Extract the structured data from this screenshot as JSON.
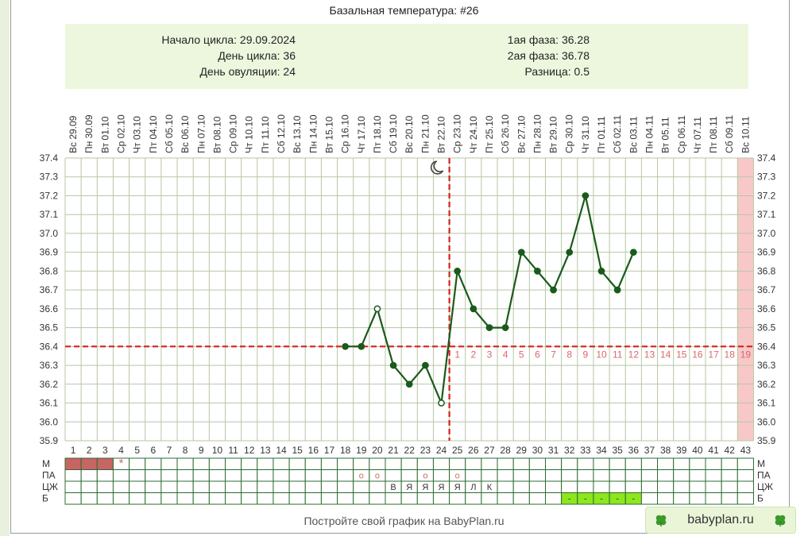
{
  "title": "Базальная температура: #26",
  "summary": {
    "cycle_start": "Начало цикла: 29.09.2024",
    "cycle_day": "День цикла: 36",
    "ovulation_day": "День овуляции: 24",
    "phase1": "1ая фаза: 36.28",
    "phase2": "2ая фаза: 36.78",
    "difference": "Разница: 0.5"
  },
  "footer_text": "Постройте свой график на BabyPlan.ru",
  "brand": "babyplan.ru",
  "colors": {
    "line": "#1a5a1a",
    "coverline": "#d62020",
    "grid": "#b6c7a6",
    "menses": "#c86464",
    "predicted": "#f8c8c8",
    "b_cell": "#8ee61e",
    "info_bg": "#edf7de",
    "accent_text": "#d66a6a"
  },
  "chart_data": {
    "type": "line",
    "title": "Базальная температура: #26",
    "x_days": [
      1,
      2,
      3,
      4,
      5,
      6,
      7,
      8,
      9,
      10,
      11,
      12,
      13,
      14,
      15,
      16,
      17,
      18,
      19,
      20,
      21,
      22,
      23,
      24,
      25,
      26,
      27,
      28,
      29,
      30,
      31,
      32,
      33,
      34,
      35,
      36,
      37,
      38,
      39,
      40,
      41,
      42,
      43
    ],
    "dates": [
      "Вс 29.09",
      "Пн 30.09",
      "Вт 01.10",
      "Ср 02.10",
      "Чт 03.10",
      "Пт 04.10",
      "Сб 05.10",
      "Вс 06.10",
      "Пн 07.10",
      "Вт 08.10",
      "Ср 09.10",
      "Чт 10.10",
      "Пт 11.10",
      "Сб 12.10",
      "Вс 13.10",
      "Пн 14.10",
      "Вт 15.10",
      "Ср 16.10",
      "Чт 17.10",
      "Пт 18.10",
      "Сб 19.10",
      "Вс 20.10",
      "Пн 21.10",
      "Вт 22.10",
      "Ср 23.10",
      "Чт 24.10",
      "Пт 25.10",
      "Сб 26.10",
      "Вс 27.10",
      "Пн 28.10",
      "Вт 29.10",
      "Ср 30.10",
      "Чт 31.10",
      "Пт 01.11",
      "Сб 02.11",
      "Вс 03.11",
      "Пн 04.11",
      "Вт 05.11",
      "Ср 06.11",
      "Чт 07.11",
      "Пт 08.11",
      "Сб 09.11",
      "Вс 10.11"
    ],
    "ylim": [
      35.9,
      37.4
    ],
    "yticks": [
      "37.4",
      "37.3",
      "37.2",
      "37.1",
      "37.0",
      "36.9",
      "36.8",
      "36.7",
      "36.6",
      "36.5",
      "36.4",
      "36.3",
      "36.2",
      "36.1",
      "36.0",
      "35.9"
    ],
    "points": [
      {
        "day": 18,
        "temp": 36.4,
        "style": "filled"
      },
      {
        "day": 19,
        "temp": 36.4,
        "style": "filled"
      },
      {
        "day": 20,
        "temp": 36.6,
        "style": "open"
      },
      {
        "day": 21,
        "temp": 36.3,
        "style": "filled"
      },
      {
        "day": 22,
        "temp": 36.2,
        "style": "filled"
      },
      {
        "day": 23,
        "temp": 36.3,
        "style": "filled"
      },
      {
        "day": 24,
        "temp": 36.1,
        "style": "open"
      },
      {
        "day": 25,
        "temp": 36.8,
        "style": "filled"
      },
      {
        "day": 26,
        "temp": 36.6,
        "style": "filled"
      },
      {
        "day": 27,
        "temp": 36.5,
        "style": "filled"
      },
      {
        "day": 28,
        "temp": 36.5,
        "style": "filled"
      },
      {
        "day": 29,
        "temp": 36.9,
        "style": "filled"
      },
      {
        "day": 30,
        "temp": 36.8,
        "style": "filled"
      },
      {
        "day": 31,
        "temp": 36.7,
        "style": "filled"
      },
      {
        "day": 32,
        "temp": 36.9,
        "style": "filled"
      },
      {
        "day": 33,
        "temp": 37.2,
        "style": "filled"
      },
      {
        "day": 34,
        "temp": 36.8,
        "style": "filled"
      },
      {
        "day": 35,
        "temp": 36.7,
        "style": "filled"
      },
      {
        "day": 36,
        "temp": 36.9,
        "style": "filled"
      }
    ],
    "coverline": 36.4,
    "ovulation_line_day": 24,
    "luteal_days": [
      1,
      2,
      3,
      4,
      5,
      6,
      7,
      8,
      9,
      10,
      11,
      12,
      13,
      14,
      15,
      16,
      17,
      18,
      19
    ],
    "luteal_start_day": 25,
    "predicted_day": 43,
    "rows": [
      {
        "label": "М",
        "cells": {
          "1": "menses",
          "2": "menses",
          "3": "menses",
          "4": "*"
        }
      },
      {
        "label": "ПА",
        "cells": {
          "19": "о",
          "20": "о",
          "23": "о",
          "25": "о"
        }
      },
      {
        "label": "ЦЖ",
        "cells": {
          "21": "В",
          "22": "Я",
          "23": "Я",
          "24": "Я",
          "25": "Я",
          "26": "Л",
          "27": "К"
        }
      },
      {
        "label": "Б",
        "cells": {
          "32": "-",
          "33": "-",
          "34": "-",
          "35": "-",
          "36": "-"
        }
      }
    ]
  }
}
